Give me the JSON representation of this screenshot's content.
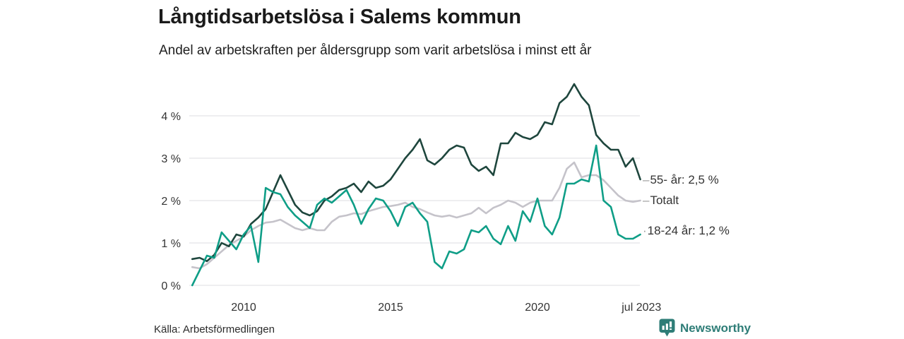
{
  "header": {
    "title": "Långtidsarbetslösa i Salems kommun",
    "subtitle": "Andel av arbetskraften per åldersgrupp som varit arbetslösa i minst ett år"
  },
  "footer": {
    "source": "Källa: Arbetsförmedlingen",
    "brand": "Newsworthy"
  },
  "colors": {
    "background": "#ffffff",
    "grid": "#e4e4e6",
    "axis_text": "#333333",
    "title_text": "#1a1a1a",
    "brand_teal": "#2e7d77",
    "series_55": "#1e463d",
    "series_total": "#c5c3ca",
    "series_18_24": "#0f9e87"
  },
  "chart_data": {
    "type": "line",
    "title": "Långtidsarbetslösa i Salems kommun",
    "subtitle": "Andel av arbetskraften per åldersgrupp som varit arbetslösa i minst ett år",
    "x_unit": "decimal_year_quarterly",
    "ylabel": "",
    "xlabel": "",
    "ylim": [
      0,
      4.9
    ],
    "xlim": [
      2008.1,
      2023.65
    ],
    "grid": "horizontal",
    "legend": "end-of-line-labels",
    "y_ticks": [
      {
        "v": 0,
        "label": "0 %"
      },
      {
        "v": 1,
        "label": "1 %"
      },
      {
        "v": 2,
        "label": "2 %"
      },
      {
        "v": 3,
        "label": "3 %"
      },
      {
        "v": 4,
        "label": "4 %"
      }
    ],
    "x_ticks": [
      {
        "t": 2010,
        "label": "2010"
      },
      {
        "t": 2015,
        "label": "2015"
      },
      {
        "t": 2020,
        "label": "2020"
      },
      {
        "t": 2023.54,
        "label": "jul 2023"
      }
    ],
    "x": [
      2008.25,
      2008.5,
      2008.75,
      2009.0,
      2009.25,
      2009.5,
      2009.75,
      2010.0,
      2010.25,
      2010.5,
      2010.75,
      2011.0,
      2011.25,
      2011.5,
      2011.75,
      2012.0,
      2012.25,
      2012.5,
      2012.75,
      2013.0,
      2013.25,
      2013.5,
      2013.75,
      2014.0,
      2014.25,
      2014.5,
      2014.75,
      2015.0,
      2015.25,
      2015.5,
      2015.75,
      2016.0,
      2016.25,
      2016.5,
      2016.75,
      2017.0,
      2017.25,
      2017.5,
      2017.75,
      2018.0,
      2018.25,
      2018.5,
      2018.75,
      2019.0,
      2019.25,
      2019.5,
      2019.75,
      2020.0,
      2020.25,
      2020.5,
      2020.75,
      2021.0,
      2021.25,
      2021.5,
      2021.75,
      2022.0,
      2022.25,
      2022.5,
      2022.75,
      2023.0,
      2023.25,
      2023.5
    ],
    "series": [
      {
        "name": "Totalt",
        "end_label": "Totalt",
        "end_value": null,
        "dash": "–",
        "color": "#c5c3ca",
        "values": [
          0.43,
          0.4,
          0.5,
          0.65,
          0.8,
          0.95,
          1.05,
          1.15,
          1.3,
          1.4,
          1.48,
          1.5,
          1.55,
          1.45,
          1.35,
          1.3,
          1.35,
          1.3,
          1.3,
          1.5,
          1.62,
          1.65,
          1.7,
          1.68,
          1.75,
          1.8,
          1.85,
          1.87,
          1.9,
          1.95,
          1.85,
          1.8,
          1.72,
          1.65,
          1.62,
          1.65,
          1.6,
          1.65,
          1.7,
          1.83,
          1.7,
          1.83,
          1.9,
          2.0,
          1.95,
          1.85,
          1.95,
          2.0,
          2.0,
          2.0,
          2.3,
          2.75,
          2.9,
          2.55,
          2.6,
          2.6,
          2.48,
          2.3,
          2.12,
          2.0,
          1.97,
          2.0
        ]
      },
      {
        "name": "55- år",
        "end_label": "55- år: 2,5 %",
        "end_value": 2.5,
        "dash": "–",
        "color": "#1e463d",
        "values": [
          0.62,
          0.65,
          0.57,
          0.72,
          1.0,
          0.92,
          1.2,
          1.15,
          1.45,
          1.6,
          1.8,
          2.2,
          2.6,
          2.25,
          1.9,
          1.72,
          1.65,
          1.75,
          2.0,
          2.1,
          2.25,
          2.3,
          2.4,
          2.2,
          2.45,
          2.3,
          2.35,
          2.5,
          2.75,
          3.0,
          3.2,
          3.45,
          2.95,
          2.85,
          3.0,
          3.2,
          3.3,
          3.25,
          2.85,
          2.7,
          2.8,
          2.6,
          3.35,
          3.35,
          3.6,
          3.5,
          3.45,
          3.55,
          3.85,
          3.8,
          4.3,
          4.45,
          4.75,
          4.45,
          4.25,
          3.55,
          3.35,
          3.2,
          3.2,
          2.8,
          3.0,
          2.5
        ]
      },
      {
        "name": "18-24 år",
        "end_label": "18-24 år: 1,2 %",
        "end_value": 1.2,
        "dash": "·",
        "color": "#0f9e87",
        "values": [
          0.0,
          0.35,
          0.7,
          0.65,
          1.25,
          1.05,
          0.85,
          1.2,
          1.4,
          0.55,
          2.3,
          2.2,
          2.15,
          1.85,
          1.65,
          1.5,
          1.35,
          1.9,
          2.05,
          1.95,
          2.1,
          2.25,
          1.9,
          1.45,
          1.8,
          2.05,
          2.0,
          1.75,
          1.4,
          1.85,
          1.95,
          1.7,
          1.5,
          0.55,
          0.4,
          0.8,
          0.75,
          0.85,
          1.3,
          1.25,
          1.4,
          1.1,
          0.97,
          1.4,
          1.05,
          1.75,
          1.5,
          2.05,
          1.4,
          1.2,
          1.6,
          2.4,
          2.4,
          2.5,
          2.45,
          3.3,
          2.0,
          1.85,
          1.2,
          1.1,
          1.1,
          1.2
        ]
      }
    ]
  }
}
